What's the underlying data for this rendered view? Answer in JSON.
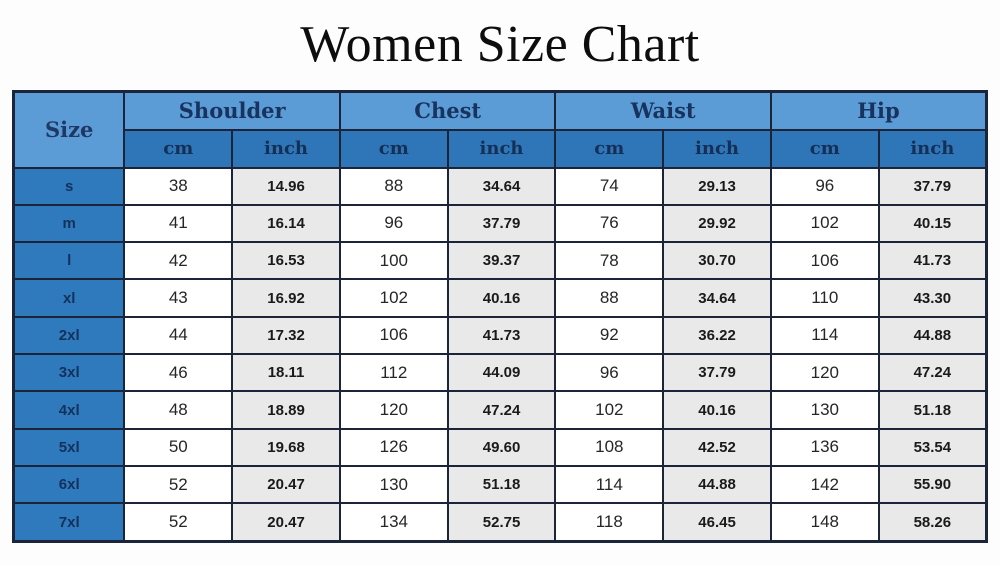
{
  "title": "Women Size Chart",
  "table": {
    "size_header": "Size",
    "groups": [
      {
        "label": "Shoulder"
      },
      {
        "label": "Chest"
      },
      {
        "label": "Waist"
      },
      {
        "label": "Hip"
      }
    ],
    "units": [
      "cm",
      "inch"
    ],
    "rows": [
      {
        "size": "s",
        "values": [
          "38",
          "14.96",
          "88",
          "34.64",
          "74",
          "29.13",
          "96",
          "37.79"
        ]
      },
      {
        "size": "m",
        "values": [
          "41",
          "16.14",
          "96",
          "37.79",
          "76",
          "29.92",
          "102",
          "40.15"
        ]
      },
      {
        "size": "l",
        "values": [
          "42",
          "16.53",
          "100",
          "39.37",
          "78",
          "30.70",
          "106",
          "41.73"
        ]
      },
      {
        "size": "xl",
        "values": [
          "43",
          "16.92",
          "102",
          "40.16",
          "88",
          "34.64",
          "110",
          "43.30"
        ]
      },
      {
        "size": "2xl",
        "values": [
          "44",
          "17.32",
          "106",
          "41.73",
          "92",
          "36.22",
          "114",
          "44.88"
        ]
      },
      {
        "size": "3xl",
        "values": [
          "46",
          "18.11",
          "112",
          "44.09",
          "96",
          "37.79",
          "120",
          "47.24"
        ]
      },
      {
        "size": "4xl",
        "values": [
          "48",
          "18.89",
          "120",
          "47.24",
          "102",
          "40.16",
          "130",
          "51.18"
        ]
      },
      {
        "size": "5xl",
        "values": [
          "50",
          "19.68",
          "126",
          "49.60",
          "108",
          "42.52",
          "136",
          "53.54"
        ]
      },
      {
        "size": "6xl",
        "values": [
          "52",
          "20.47",
          "130",
          "51.18",
          "114",
          "44.88",
          "142",
          "55.90"
        ]
      },
      {
        "size": "7xl",
        "values": [
          "52",
          "20.47",
          "134",
          "52.75",
          "118",
          "46.45",
          "148",
          "58.26"
        ]
      }
    ]
  },
  "colors": {
    "group_header_blue": "#5b9cd6",
    "unit_header_blue": "#2e76b8",
    "size_cell_blue": "#2f7abc",
    "inch_cell_gray": "#e9e9e9",
    "cm_cell_white": "#ffffff",
    "border_navy": "#1b2438",
    "header_text_navy": "#1f3864"
  },
  "chart_data": {
    "type": "table",
    "title": "Women Size Chart",
    "column_groups": [
      "Size",
      "Shoulder",
      "Chest",
      "Waist",
      "Hip"
    ],
    "columns": [
      "Size",
      "Shoulder cm",
      "Shoulder inch",
      "Chest cm",
      "Chest inch",
      "Waist cm",
      "Waist inch",
      "Hip cm",
      "Hip inch"
    ],
    "rows": [
      [
        "s",
        38,
        14.96,
        88,
        34.64,
        74,
        29.13,
        96,
        37.79
      ],
      [
        "m",
        41,
        16.14,
        96,
        37.79,
        76,
        29.92,
        102,
        40.15
      ],
      [
        "l",
        42,
        16.53,
        100,
        39.37,
        78,
        30.7,
        106,
        41.73
      ],
      [
        "xl",
        43,
        16.92,
        102,
        40.16,
        88,
        34.64,
        110,
        43.3
      ],
      [
        "2xl",
        44,
        17.32,
        106,
        41.73,
        92,
        36.22,
        114,
        44.88
      ],
      [
        "3xl",
        46,
        18.11,
        112,
        44.09,
        96,
        37.79,
        120,
        47.24
      ],
      [
        "4xl",
        48,
        18.89,
        120,
        47.24,
        102,
        40.16,
        130,
        51.18
      ],
      [
        "5xl",
        50,
        19.68,
        126,
        49.6,
        108,
        42.52,
        136,
        53.54
      ],
      [
        "6xl",
        52,
        20.47,
        130,
        51.18,
        114,
        44.88,
        142,
        55.9
      ],
      [
        "7xl",
        52,
        20.47,
        134,
        52.75,
        118,
        46.45,
        148,
        58.26
      ]
    ]
  }
}
